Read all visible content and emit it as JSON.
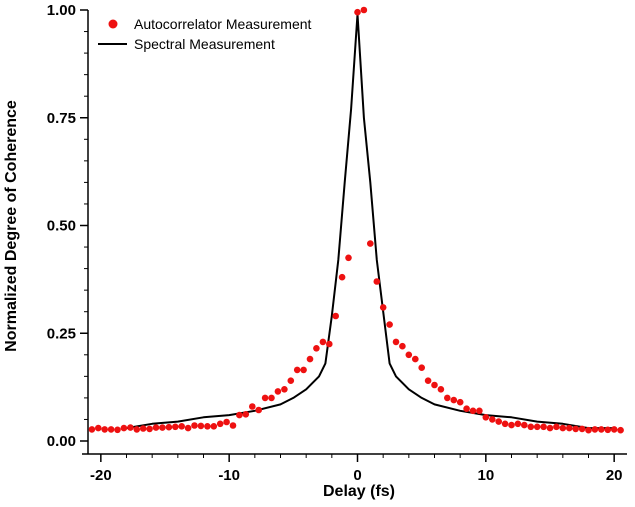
{
  "chart_data": {
    "type": "scatter",
    "xlabel": "Delay (fs)",
    "ylabel": "Normalized Degree of Coherence",
    "xlim": [
      -21,
      21
    ],
    "ylim": [
      0,
      1
    ],
    "xticks": [
      -20,
      -10,
      0,
      10,
      20
    ],
    "yticks": [
      0.0,
      0.25,
      0.5,
      0.75,
      1.0
    ],
    "xtick_labels": [
      "-20",
      "-10",
      "0",
      "10",
      "20"
    ],
    "ytick_labels": [
      "0.00",
      "0.25",
      "0.50",
      "0.75",
      "1.00"
    ],
    "legend_position": "top-left",
    "grid": false,
    "series": [
      {
        "name": "Autocorrelator Measurement",
        "kind": "points",
        "color": "#ee1111",
        "x": [
          -20.7,
          -20.2,
          -19.7,
          -19.2,
          -18.7,
          -18.2,
          -17.7,
          -17.2,
          -16.7,
          -16.2,
          -15.7,
          -15.2,
          -14.7,
          -14.2,
          -13.7,
          -13.2,
          -12.7,
          -12.2,
          -11.7,
          -11.2,
          -10.7,
          -10.2,
          -9.7,
          -9.2,
          -8.7,
          -8.2,
          -7.7,
          -7.2,
          -6.7,
          -6.2,
          -5.7,
          -5.2,
          -4.7,
          -4.2,
          -3.7,
          -3.2,
          -2.7,
          -2.2,
          -1.7,
          -1.2,
          -0.7,
          0.0,
          0.5,
          1.0,
          1.5,
          2.0,
          2.5,
          3.0,
          3.5,
          4.0,
          4.5,
          5.0,
          5.5,
          6.0,
          6.5,
          7.0,
          7.5,
          8.0,
          8.5,
          9.0,
          9.5,
          10.0,
          10.5,
          11.0,
          11.5,
          12.0,
          12.5,
          13.0,
          13.5,
          14.0,
          14.5,
          15.0,
          15.5,
          16.0,
          16.5,
          17.0,
          17.5,
          18.0,
          18.5,
          19.0,
          19.5,
          20.0,
          20.5
        ],
        "y": [
          0.027,
          0.03,
          0.027,
          0.027,
          0.026,
          0.03,
          0.031,
          0.027,
          0.029,
          0.028,
          0.031,
          0.031,
          0.032,
          0.033,
          0.034,
          0.03,
          0.036,
          0.035,
          0.034,
          0.034,
          0.04,
          0.044,
          0.036,
          0.06,
          0.062,
          0.08,
          0.072,
          0.1,
          0.1,
          0.115,
          0.12,
          0.14,
          0.165,
          0.165,
          0.19,
          0.215,
          0.23,
          0.225,
          0.29,
          0.38,
          0.425,
          0.995,
          1.0,
          0.458,
          0.37,
          0.31,
          0.27,
          0.23,
          0.22,
          0.2,
          0.19,
          0.17,
          0.14,
          0.13,
          0.12,
          0.1,
          0.095,
          0.09,
          0.075,
          0.07,
          0.07,
          0.055,
          0.05,
          0.045,
          0.04,
          0.037,
          0.04,
          0.037,
          0.033,
          0.033,
          0.033,
          0.03,
          0.033,
          0.03,
          0.03,
          0.028,
          0.028,
          0.025,
          0.027,
          0.027,
          0.026,
          0.027,
          0.025
        ]
      },
      {
        "name": "Spectral Measurement",
        "kind": "line",
        "color": "#000000",
        "x": [
          -18.0,
          -16.0,
          -14.0,
          -12.0,
          -10.0,
          -8.0,
          -6.0,
          -5.0,
          -4.0,
          -3.0,
          -2.5,
          -2.0,
          -1.5,
          -1.0,
          -0.5,
          0.0,
          0.5,
          1.0,
          1.5,
          2.0,
          2.5,
          3.0,
          4.0,
          5.0,
          6.0,
          8.0,
          10.0,
          12.0,
          14.0,
          16.0,
          18.0,
          20.0
        ],
        "y": [
          0.03,
          0.04,
          0.045,
          0.055,
          0.06,
          0.07,
          0.085,
          0.1,
          0.12,
          0.15,
          0.18,
          0.29,
          0.42,
          0.6,
          0.77,
          0.99,
          0.75,
          0.6,
          0.42,
          0.3,
          0.18,
          0.15,
          0.12,
          0.1,
          0.085,
          0.07,
          0.06,
          0.055,
          0.045,
          0.04,
          0.03,
          0.03
        ]
      }
    ]
  }
}
